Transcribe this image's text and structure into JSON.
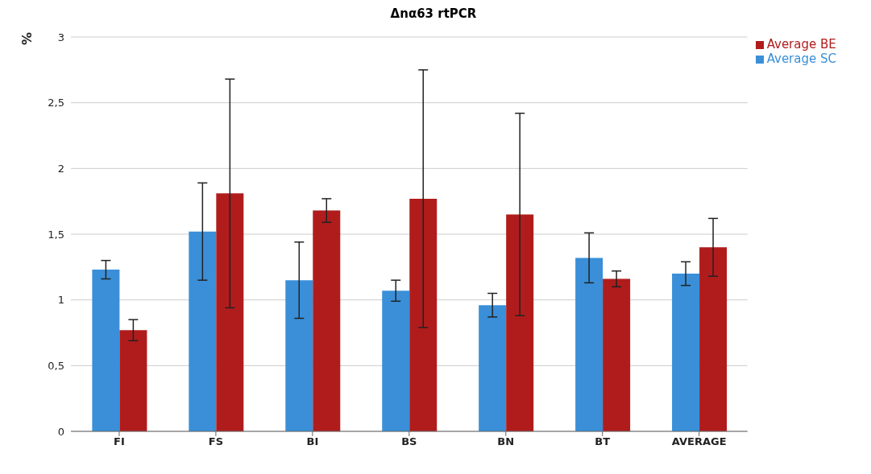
{
  "chart_data": {
    "type": "bar",
    "title": "Δnα63 rtPCR",
    "ylabel": "%",
    "categories": [
      "FI",
      "FS",
      "BI",
      "BS",
      "BN",
      "BT",
      "AVERAGE"
    ],
    "series": [
      {
        "name": "Average SC",
        "color": "#3a8fd8",
        "values": [
          1.23,
          1.52,
          1.15,
          1.07,
          0.96,
          1.32,
          1.2
        ],
        "errors": [
          0.07,
          0.37,
          0.29,
          0.08,
          0.09,
          0.19,
          0.09
        ]
      },
      {
        "name": "Average BE",
        "color": "#b01c1c",
        "values": [
          0.77,
          1.81,
          1.68,
          1.77,
          1.65,
          1.16,
          1.4
        ],
        "errors": [
          0.08,
          0.87,
          0.09,
          0.98,
          0.77,
          0.06,
          0.22
        ]
      }
    ],
    "ylim": [
      0,
      3
    ],
    "yticks": [
      0,
      {
        "value": 0.5,
        "label": "0,5"
      },
      1,
      {
        "value": 1.5,
        "label": "1,5"
      },
      2,
      {
        "value": 2.5,
        "label": "2,5"
      },
      3
    ],
    "grid": "y",
    "legend": "top right"
  }
}
